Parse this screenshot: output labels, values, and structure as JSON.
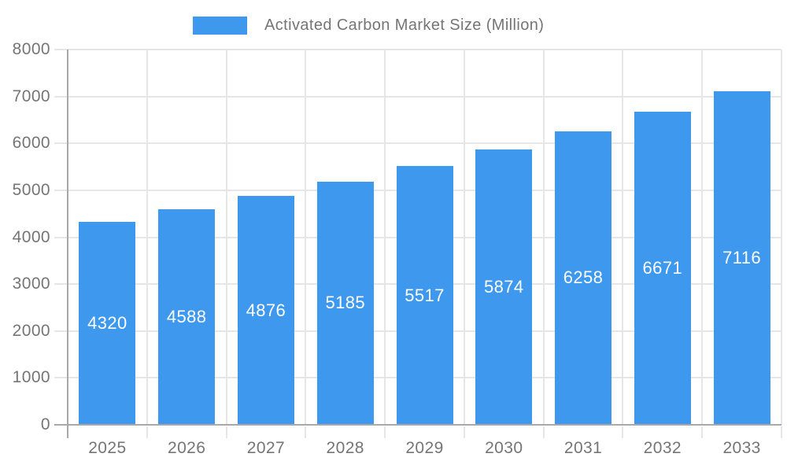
{
  "legend": {
    "label": "Activated Carbon Market Size (Million)",
    "swatch_color": "#3d98ee"
  },
  "chart_data": {
    "type": "bar",
    "title": "Activated Carbon Market Size (Million)",
    "categories": [
      "2025",
      "2026",
      "2027",
      "2028",
      "2029",
      "2030",
      "2031",
      "2032",
      "2033"
    ],
    "values": [
      4320,
      4588,
      4876,
      5185,
      5517,
      5874,
      6258,
      6671,
      7116
    ],
    "xlabel": "",
    "ylabel": "",
    "ylim": [
      0,
      8000
    ],
    "ytick_step": 1000,
    "ytick_labels": [
      "0",
      "1000",
      "2000",
      "3000",
      "4000",
      "5000",
      "6000",
      "7000",
      "8000"
    ],
    "grid": true,
    "legend_position": "top-center",
    "value_labels": "inside-center",
    "colors": {
      "bar": "#3d98ee",
      "value_label_text": "#ffffff",
      "axis_text": "#757575",
      "gridline": "#e6e6e6",
      "axis_line": "#a9a9a9",
      "background": "#ffffff"
    }
  }
}
